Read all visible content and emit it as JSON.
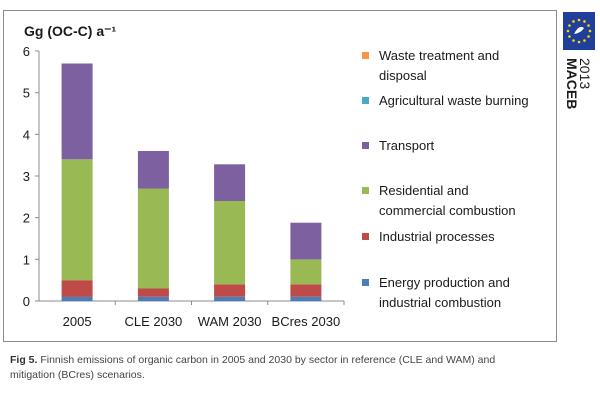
{
  "chart_data": {
    "type": "bar",
    "stacked": true,
    "unit_title": "Gg (OC-C) a⁻¹",
    "categories": [
      "2005",
      "CLE 2030",
      "WAM 2030",
      "BCres 2030"
    ],
    "ylim": [
      0,
      6
    ],
    "yticks": [
      "0",
      "1",
      "2",
      "3",
      "4",
      "5",
      "6"
    ],
    "grid": false,
    "legend_position": "right",
    "series": [
      {
        "name": "Energy production and industrial combustion",
        "color": "#4a7ebb",
        "values": [
          0.1,
          0.1,
          0.1,
          0.1
        ]
      },
      {
        "name": "Industrial processes",
        "color": "#be4b48",
        "values": [
          0.4,
          0.2,
          0.3,
          0.3
        ]
      },
      {
        "name": "Residential and commercial combustion",
        "color": "#98b954",
        "values": [
          2.9,
          2.4,
          2.0,
          0.6
        ]
      },
      {
        "name": "Transport",
        "color": "#7d60a0",
        "values": [
          2.3,
          0.9,
          0.88,
          0.88
        ]
      },
      {
        "name": "Agricultural waste burning",
        "color": "#46aac5",
        "values": [
          0,
          0,
          0,
          0
        ]
      },
      {
        "name": "Waste treatment and disposal",
        "color": "#f79646",
        "values": [
          0,
          0,
          0,
          0
        ]
      }
    ],
    "legend": [
      {
        "lines": [
          "Waste treatment and",
          "disposal"
        ],
        "color": "#f79646"
      },
      {
        "lines": [
          "Agricultural waste burning"
        ],
        "color": "#46aac5"
      },
      {
        "lines": [
          "Transport"
        ],
        "color": "#7d60a0"
      },
      {
        "lines": [
          "Residential and",
          "commercial combustion"
        ],
        "color": "#98b954"
      },
      {
        "lines": [
          "Industrial processes"
        ],
        "color": "#be4b48"
      },
      {
        "lines": [
          "Energy production and",
          "industrial combustion"
        ],
        "color": "#4a7ebb"
      }
    ]
  },
  "caption": {
    "label": "Fig 5.",
    "text": "Finnish emissions of organic carbon in 2005 and 2030 by sector in reference (CLE and WAM) and mitigation (BCres) scenarios."
  },
  "logo": {
    "name": "MACEB",
    "year": "2013",
    "flag_color": "#1f3f9a",
    "star_color": "#ffd700"
  }
}
